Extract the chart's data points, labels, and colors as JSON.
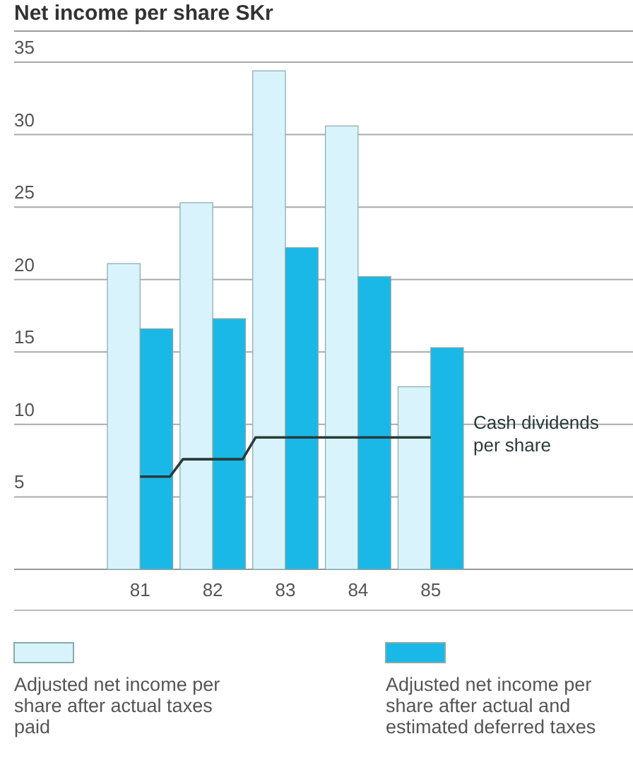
{
  "chart_data": {
    "type": "bar",
    "title": "Net income per share SKr",
    "categories": [
      "81",
      "82",
      "83",
      "84",
      "85"
    ],
    "series": [
      {
        "name": "Adjusted net income per share after actual taxes paid",
        "color": "#d8f3fb",
        "values": [
          21.1,
          25.3,
          34.4,
          30.6,
          12.6
        ]
      },
      {
        "name": "Adjusted net income per share after actual and estimated deferred taxes",
        "color": "#1ab8e6",
        "values": [
          16.6,
          17.3,
          22.2,
          20.2,
          15.3
        ]
      },
      {
        "name": "Cash dividends per share",
        "type": "step",
        "color": "#2a3a3a",
        "values": [
          6.4,
          7.6,
          9.1,
          9.1,
          9.1
        ]
      }
    ],
    "ylim": [
      0,
      35
    ],
    "yticks": [
      5,
      10,
      15,
      20,
      25,
      30,
      35
    ],
    "grid": "y",
    "legend": "bottom"
  }
}
